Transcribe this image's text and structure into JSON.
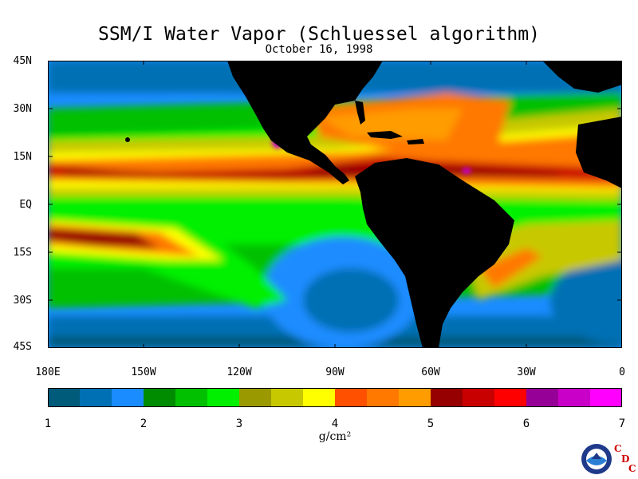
{
  "title": "SSM/I Water Vapor (Schluessel algorithm)",
  "subtitle": "October 16, 1998",
  "lat_labels": [
    "45N",
    "30N",
    "15N",
    "EQ",
    "15S",
    "30S",
    "45S"
  ],
  "lon_labels": [
    "180E",
    "150W",
    "120W",
    "90W",
    "60W",
    "30W",
    "0"
  ],
  "colorbar": {
    "labels": [
      "1",
      "2",
      "3",
      "4",
      "5",
      "6",
      "7"
    ],
    "units": "g/cm²",
    "colors": [
      "#005a7a",
      "#0070b4",
      "#1a8cff",
      "#008c00",
      "#00c000",
      "#00f000",
      "#9a9a00",
      "#c8c800",
      "#ffff00",
      "#ff5000",
      "#ff7800",
      "#ff9c00",
      "#960000",
      "#c80000",
      "#ff0000",
      "#960096",
      "#c800c8",
      "#ff00ff"
    ]
  },
  "logo": {
    "agency": "NOAA",
    "letters": [
      "C",
      "D",
      "C"
    ],
    "icon": "noaa-seal-icon"
  }
}
